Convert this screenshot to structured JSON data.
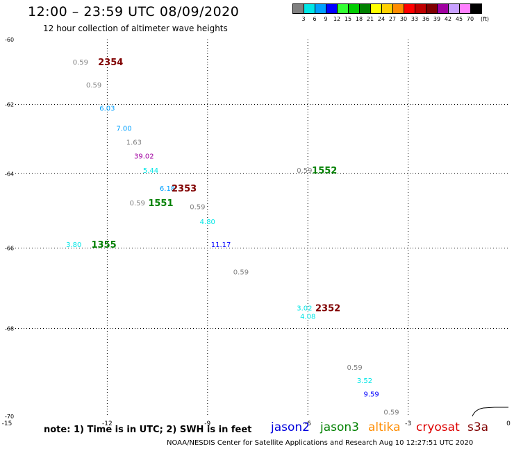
{
  "header": {
    "title": "12:00 – 23:59 UTC 08/09/2020",
    "subtitle": "12 hour collection of altimeter wave heights"
  },
  "color_scale": {
    "unit": "(ft)",
    "steps": [
      {
        "label": "3",
        "color": "#808080"
      },
      {
        "label": "6",
        "color": "#00e6e6"
      },
      {
        "label": "9",
        "color": "#00a0ff"
      },
      {
        "label": "12",
        "color": "#0000ff"
      },
      {
        "label": "15",
        "color": "#33ff33"
      },
      {
        "label": "18",
        "color": "#00cc00"
      },
      {
        "label": "21",
        "color": "#008000"
      },
      {
        "label": "24",
        "color": "#ffff00"
      },
      {
        "label": "27",
        "color": "#ffd000"
      },
      {
        "label": "30",
        "color": "#ff8c00"
      },
      {
        "label": "33",
        "color": "#ff0000"
      },
      {
        "label": "36",
        "color": "#c00000"
      },
      {
        "label": "39",
        "color": "#800000"
      },
      {
        "label": "42",
        "color": "#a000a0"
      },
      {
        "label": "45",
        "color": "#c8a0ff"
      },
      {
        "label": "70",
        "color": "#ff80ff"
      },
      {
        "label": "",
        "color": "#000000"
      }
    ]
  },
  "map": {
    "lon_ticks": [
      "-15",
      "-12",
      "-9",
      "-6",
      "-3",
      "0"
    ],
    "lat_ticks": [
      "-60",
      "-62",
      "-64",
      "-66",
      "-68",
      "-70"
    ],
    "observations": [
      {
        "lon": -12.8,
        "lat": -60.7,
        "text": "0.59",
        "color": "#808080"
      },
      {
        "lon": -12.4,
        "lat": -61.4,
        "text": "0.59",
        "color": "#808080"
      },
      {
        "lon": -12.0,
        "lat": -62.1,
        "text": "6.03",
        "color": "#00a0ff"
      },
      {
        "lon": -11.5,
        "lat": -62.7,
        "text": "7.00",
        "color": "#00a0ff"
      },
      {
        "lon": -11.2,
        "lat": -63.1,
        "text": "1.63",
        "color": "#808080"
      },
      {
        "lon": -10.9,
        "lat": -63.5,
        "text": "39.02",
        "color": "#a000a0"
      },
      {
        "lon": -10.7,
        "lat": -63.9,
        "text": "5.44",
        "color": "#00e6e6"
      },
      {
        "lon": -10.2,
        "lat": -64.4,
        "text": "6.18",
        "color": "#00a0ff"
      },
      {
        "lon": -11.1,
        "lat": -64.8,
        "text": "0.59",
        "color": "#808080"
      },
      {
        "lon": -9.3,
        "lat": -64.9,
        "text": "0.59",
        "color": "#808080"
      },
      {
        "lon": -9.0,
        "lat": -65.3,
        "text": "4.80",
        "color": "#00e6e6"
      },
      {
        "lon": -13.0,
        "lat": -65.9,
        "text": "3.80",
        "color": "#00e6e6"
      },
      {
        "lon": -8.6,
        "lat": -65.9,
        "text": "11.17",
        "color": "#0000ff"
      },
      {
        "lon": -8.0,
        "lat": -66.6,
        "text": "0.59",
        "color": "#808080"
      },
      {
        "lon": -6.1,
        "lat": -63.9,
        "text": "0.59",
        "color": "#808080"
      },
      {
        "lon": -6.1,
        "lat": -67.5,
        "text": "3.02",
        "color": "#00e6e6"
      },
      {
        "lon": -6.0,
        "lat": -67.7,
        "text": "4.08",
        "color": "#00e6e6"
      },
      {
        "lon": -4.6,
        "lat": -68.9,
        "text": "0.59",
        "color": "#808080"
      },
      {
        "lon": -4.3,
        "lat": -69.2,
        "text": "3.52",
        "color": "#00e6e6"
      },
      {
        "lon": -4.1,
        "lat": -69.5,
        "text": "9.59",
        "color": "#0000ff"
      },
      {
        "lon": -3.5,
        "lat": -69.9,
        "text": "0.59",
        "color": "#808080"
      }
    ],
    "pass_labels": [
      {
        "lon": -11.9,
        "lat": -60.7,
        "text": "2354",
        "color": "#800000"
      },
      {
        "lon": -9.7,
        "lat": -64.4,
        "text": "2353",
        "color": "#800000"
      },
      {
        "lon": -10.4,
        "lat": -64.8,
        "text": "1551",
        "color": "#008000"
      },
      {
        "lon": -12.1,
        "lat": -65.9,
        "text": "1355",
        "color": "#008000"
      },
      {
        "lon": -5.5,
        "lat": -63.9,
        "text": "1552",
        "color": "#008000"
      },
      {
        "lon": -5.4,
        "lat": -67.5,
        "text": "2352",
        "color": "#800000"
      }
    ]
  },
  "footer": {
    "note": "note: 1) Time is in UTC; 2) SWH is in feet",
    "satellites": [
      {
        "label": "jason2",
        "color": "#0000dd"
      },
      {
        "label": "jason3",
        "color": "#008000"
      },
      {
        "label": "altika",
        "color": "#ff8c00"
      },
      {
        "label": "cryosat",
        "color": "#dd0000"
      },
      {
        "label": "s3a",
        "color": "#800000"
      }
    ],
    "credit": "NOAA/NESDIS Center for Satellite Applications and Research    Aug 10 12:27:51 UTC 2020"
  }
}
